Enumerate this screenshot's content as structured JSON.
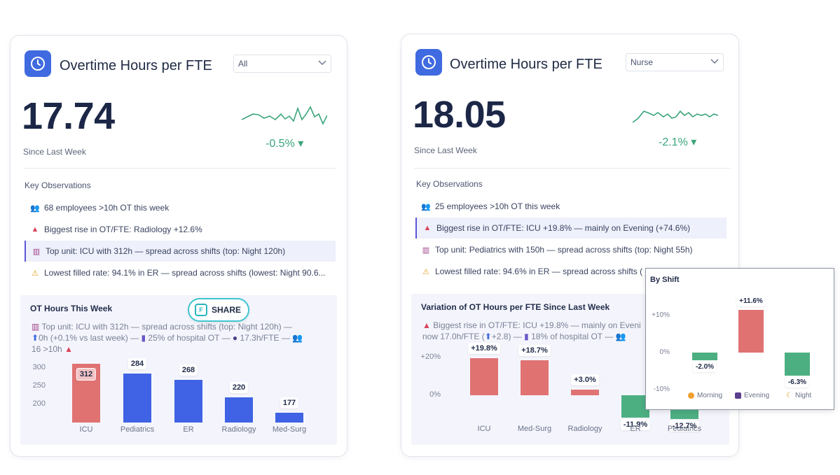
{
  "card_left": {
    "title": "Overtime Hours per FTE",
    "filter_value": "All",
    "kpi_value": "17.74",
    "since_label": "Since Last Week",
    "delta": "-0.5% ▾",
    "observations_title": "Key Observations",
    "observations": [
      {
        "icon": "people-icon",
        "text": "68 employees >10h OT this week"
      },
      {
        "icon": "up-triangle-icon",
        "text": "Biggest rise in OT/FTE: Radiology +12.6%"
      },
      {
        "icon": "building-icon",
        "text": "Top unit: ICU with 312h — spread across shifts (top: Night 120h)"
      },
      {
        "icon": "warning-icon",
        "text": "Lowest filled rate: 94.1% in ER — spread across shifts (lowest: Night 90.6..."
      }
    ],
    "panel_title": "OT Hours This Week",
    "panel_text": {
      "l1": "Top unit: ICU with 312h — spread across shifts (top: Night 120h) —",
      "l2a": "0h (+0.1% vs last week) — ",
      "l2b": " 25% of hospital OT — ",
      "l2c": " 17.3h/FTE — ",
      "l3": "16 >10h"
    },
    "chart_data": {
      "type": "bar",
      "categories": [
        "ICU",
        "Pediatrics",
        "ER",
        "Radiology",
        "Med-Surg"
      ],
      "values": [
        312,
        284,
        268,
        220,
        177
      ],
      "highlight_index": 0,
      "yticks": [
        "300",
        "250",
        "200"
      ],
      "title": "OT Hours This Week"
    }
  },
  "card_right": {
    "title": "Overtime Hours per FTE",
    "filter_value": "Nurse",
    "kpi_value": "18.05",
    "since_label": "Since Last Week",
    "delta": "-2.1% ▾",
    "observations_title": "Key Observations",
    "observations": [
      {
        "icon": "people-icon",
        "text": "25 employees >10h OT this week"
      },
      {
        "icon": "up-triangle-icon",
        "text": "Biggest rise in OT/FTE: ICU +19.8% — mainly on Evening (+74.6%)"
      },
      {
        "icon": "building-icon",
        "text": "Top unit: Pediatrics with 150h — spread across shifts (top: Night 55h)"
      },
      {
        "icon": "warning-icon",
        "text": "Lowest filled rate: 94.6% in ER — spread across shifts ("
      }
    ],
    "panel_title": "Variation of OT Hours per FTE Since Last Week",
    "panel_text": {
      "l1": "Biggest rise in OT/FTE: ICU +19.8% — mainly on Eveni",
      "l2a": "now 17.0h/FTE (",
      "l2b": "+2.8) — ",
      "l2c": " 18% of hospital OT — "
    },
    "chart_data": {
      "type": "bar",
      "categories": [
        "ICU",
        "Med-Surg",
        "Radiology",
        "ER",
        "Pediatrics"
      ],
      "values": [
        19.8,
        18.7,
        3.0,
        -11.9,
        -12.7
      ],
      "labels": [
        "+19.8%",
        "+18.7%",
        "+3.0%",
        "-11.9%",
        "-12.7%"
      ],
      "yticks": [
        "+20%",
        "0%"
      ],
      "title": "Variation of OT Hours per FTE Since Last Week"
    }
  },
  "share_button": {
    "label": "SHARE"
  },
  "popup": {
    "title": "By Shift",
    "chart_data": {
      "type": "bar",
      "categories": [
        "Morning",
        "Evening",
        "Night"
      ],
      "values": [
        -2.0,
        11.6,
        -6.3
      ],
      "labels": [
        "-2.0%",
        "+11.6%",
        "-6.3%"
      ],
      "yticks": [
        "+10%",
        "0%",
        "-10%"
      ],
      "legend": [
        "Morning",
        "Evening",
        "Night"
      ]
    }
  },
  "colors": {
    "accent": "#3f6ae0",
    "positive": "#3aa57a",
    "bar_blue": "#3f63e4",
    "bar_red": "#e07272",
    "bar_green": "#4caf82"
  }
}
